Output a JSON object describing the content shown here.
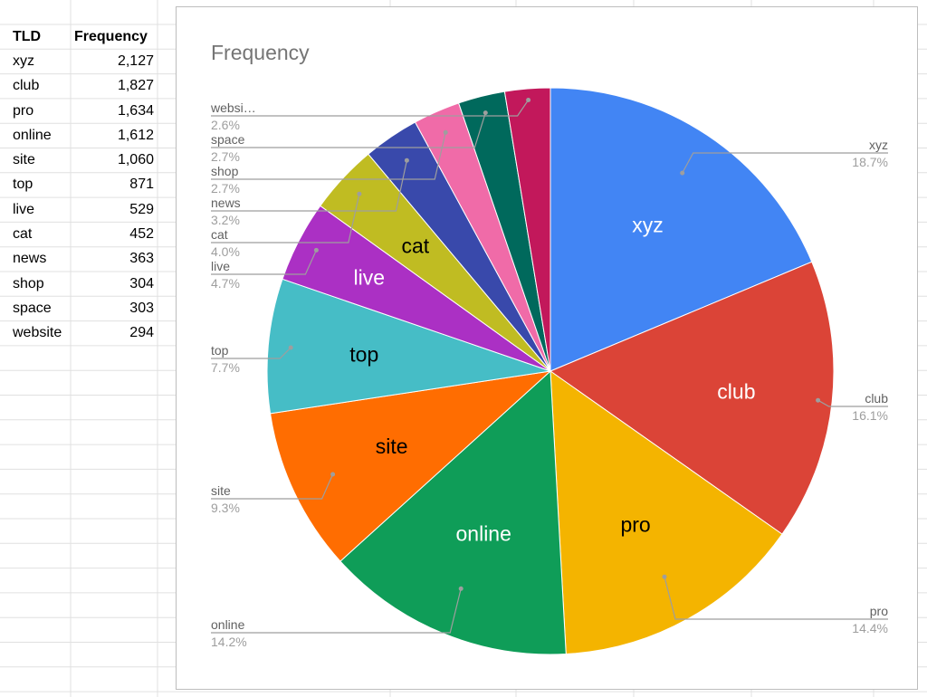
{
  "sheet": {
    "headers": [
      "TLD",
      "Frequency"
    ],
    "rows": [
      [
        "xyz",
        "2,127"
      ],
      [
        "club",
        "1,827"
      ],
      [
        "pro",
        "1,634"
      ],
      [
        "online",
        "1,612"
      ],
      [
        "site",
        "1,060"
      ],
      [
        "top",
        "871"
      ],
      [
        "live",
        "529"
      ],
      [
        "cat",
        "452"
      ],
      [
        "news",
        "363"
      ],
      [
        "shop",
        "304"
      ],
      [
        "space",
        "303"
      ],
      [
        "website",
        "294"
      ]
    ]
  },
  "chart_data": {
    "type": "pie",
    "title": "Frequency",
    "categories": [
      "xyz",
      "club",
      "pro",
      "online",
      "site",
      "top",
      "live",
      "cat",
      "news",
      "shop",
      "space",
      "website"
    ],
    "values": [
      2127,
      1827,
      1634,
      1612,
      1060,
      871,
      529,
      452,
      363,
      304,
      303,
      294
    ],
    "colors": [
      "#4285f4",
      "#db4437",
      "#f4b400",
      "#0f9d58",
      "#ff6d01",
      "#46bdc6",
      "#ab30c4",
      "#c0bc22",
      "#3949ab",
      "#f06ba8",
      "#00695c",
      "#c2185b"
    ],
    "slice_label_colors": [
      "#ffffff",
      "#ffffff",
      "#000000",
      "#ffffff",
      "#000000",
      "#000000",
      "#ffffff",
      "#000000",
      "#ffffff",
      "#000000",
      "#ffffff",
      "#ffffff"
    ],
    "slice_labels": [
      "xyz",
      "club",
      "pro",
      "online",
      "site",
      "top",
      "live",
      "cat",
      "",
      "",
      "",
      ""
    ],
    "legend_names": [
      "xyz",
      "club",
      "pro",
      "online",
      "site",
      "top",
      "live",
      "cat",
      "news",
      "shop",
      "space",
      "websi…"
    ],
    "percent_labels": [
      "18.7%",
      "16.1%",
      "14.4%",
      "14.2%",
      "9.3%",
      "7.7%",
      "4.7%",
      "4.0%",
      "3.2%",
      "2.7%",
      "2.7%",
      "2.6%"
    ],
    "legend": "labeled"
  }
}
